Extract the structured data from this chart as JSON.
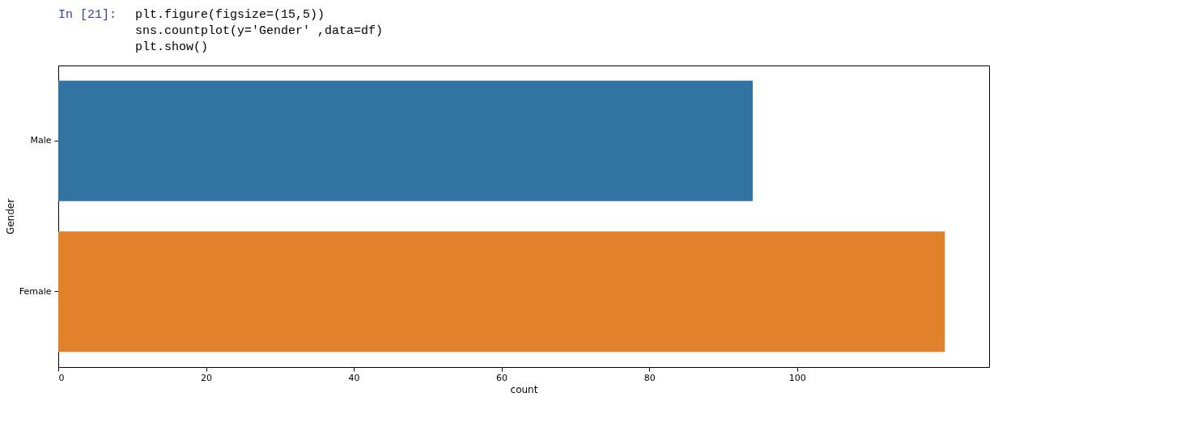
{
  "chart_data": {
    "type": "bar",
    "orientation": "horizontal",
    "categories": [
      "Male",
      "Female"
    ],
    "values": [
      94,
      120
    ],
    "colors": [
      "#3274a1",
      "#e1812c"
    ],
    "xlabel": "count",
    "ylabel": "Gender",
    "xlim": [
      0,
      126
    ],
    "xticks": [
      0,
      20,
      40,
      60,
      80,
      100
    ],
    "grid": false,
    "annotations": [
      "In [21]:",
      "plt.figure(figsize=(15,5))",
      "sns.countplot(y='Gender' ,data=df)",
      "plt.show()"
    ]
  }
}
